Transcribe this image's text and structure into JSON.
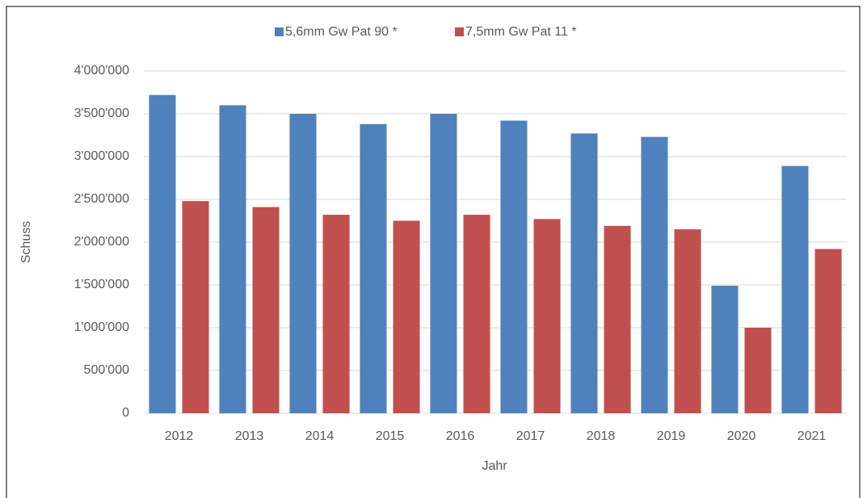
{
  "chart_data": {
    "type": "bar",
    "categories": [
      "2012",
      "2013",
      "2014",
      "2015",
      "2016",
      "2017",
      "2018",
      "2019",
      "2020",
      "2021"
    ],
    "series": [
      {
        "name": "5,6mm Gw Pat 90 *",
        "color": "#4f81bd",
        "values": [
          3720000,
          3600000,
          3500000,
          3380000,
          3500000,
          3420000,
          3270000,
          3230000,
          1490000,
          2890000
        ]
      },
      {
        "name": "7,5mm Gw Pat 11 *",
        "color": "#c0504d",
        "values": [
          2480000,
          2410000,
          2320000,
          2250000,
          2320000,
          2270000,
          2190000,
          2150000,
          1000000,
          1920000
        ]
      }
    ],
    "ylim": [
      0,
      4000000
    ],
    "yticks": [
      0,
      {
        "value": 500000,
        "label": "500'000"
      },
      {
        "value": 1000000,
        "label": "1'000'000"
      },
      {
        "value": 1500000,
        "label": "1'500'000"
      },
      {
        "value": 2000000,
        "label": "2'000'000"
      },
      {
        "value": 2500000,
        "label": "2'500'000"
      },
      {
        "value": 3000000,
        "label": "3'000'000"
      },
      {
        "value": 3500000,
        "label": "3'500'000"
      },
      {
        "value": 4000000,
        "label": "4'000'000"
      }
    ],
    "ylabel": "Schuss",
    "xlabel": "Jahr",
    "grid": true,
    "legend": "top"
  }
}
